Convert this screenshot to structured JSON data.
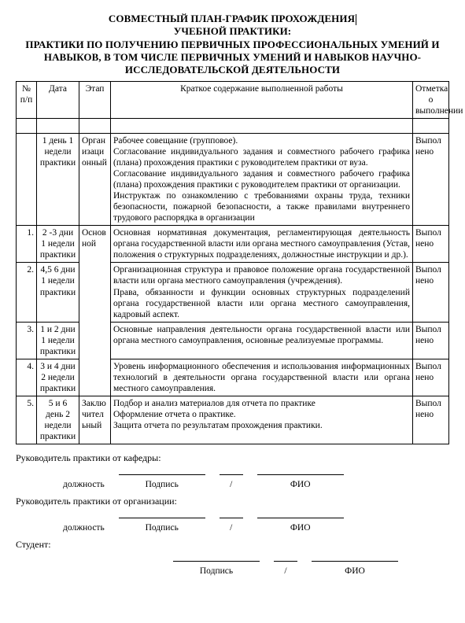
{
  "title": {
    "l1": "СОВМЕСТНЫЙ ПЛАН-ГРАФИК ПРОХОЖДЕНИЯ",
    "l2": "УЧЕБНОЙ ПРАКТИКИ:",
    "l3": "ПРАКТИКИ ПО ПОЛУЧЕНИЮ ПЕРВИЧНЫХ ПРОФЕССИОНАЛЬНЫХ УМЕНИЙ И НАВЫКОВ, В ТОМ ЧИСЛЕ   ПЕРВИЧНЫХ УМЕНИЙ И НАВЫКОВ НАУЧНО-ИССЛЕДОВАТЕЛЬСКОЙ ДЕЯТЕЛЬНОСТИ"
  },
  "headers": {
    "num": "№ п/п",
    "date": "Дата",
    "stage": "Этап",
    "desc": "Краткое содержание выполненной работы",
    "mark": "Отметка о выполнении"
  },
  "rows": [
    {
      "num": "",
      "date": "1 день 1 недели практики",
      "stage": "Организационный",
      "desc": "Рабочее совещание (групповое).\nСогласование индивидуального задания и совместного рабочего графика (плана) прохождения практики с руководителем практики от вуза.\nСогласование индивидуального задания и совместного рабочего графика (плана) прохождения практики с руководителем практики от организации.\nИнструктаж по ознакомлению с требованиями охраны труда, техники безопасности, пожарной безопасности, а также правилами внутреннего трудового распорядка в организации",
      "mark": "Выполнено"
    },
    {
      "num": "1.",
      "date": "2 -3 дни 1 недели практики",
      "stage": "Основной",
      "desc": "Основная нормативная документация, регламентирующая деятельность органа государственной власти или органа местного самоуправления (Устав, положения о структурных подразделениях, должностные инструкции и др.).",
      "mark": "Выполнено"
    },
    {
      "num": "2.",
      "date": "4,5 6 дни 1 недели практики",
      "stage": "",
      "desc": "Организационная структура и правовое положение органа государственной власти или органа местного самоуправления (учреждения).\nПрава, обязанности и функции основных структурных подразделений органа государственной власти или органа местного самоуправления, кадровый аспект.",
      "mark": "Выполнено"
    },
    {
      "num": "3.",
      "date": "1 и 2 дни 1 недели практики",
      "stage": "",
      "desc": "Основные направления деятельности органа государственной власти или органа местного самоуправления, основные реализуемые программы.",
      "mark": "Выполнено"
    },
    {
      "num": "4.",
      "date": "3 и 4 дни 2 недели практики",
      "stage": "",
      "desc": "Уровень информационного обеспечения и использования информационных технологий в деятельности органа государственной власти или органа местного самоуправления.",
      "mark": "Выполнено"
    },
    {
      "num": "5.",
      "date": "5 и 6 день 2 недели практики",
      "stage": "Заключительный",
      "desc": "Подбор и анализ материалов для отчета по практике\nОформление отчета о практике.\nЗащита отчета по результатам прохождения практики.",
      "mark": "Выполнено"
    }
  ],
  "sign": {
    "head_dept": "Руководитель практики от кафедры:",
    "head_org": "Руководитель практики от организации:",
    "student": "Студент:",
    "position": "должность",
    "signature": "Подпись",
    "fio": "ФИО",
    "slash": "/"
  }
}
